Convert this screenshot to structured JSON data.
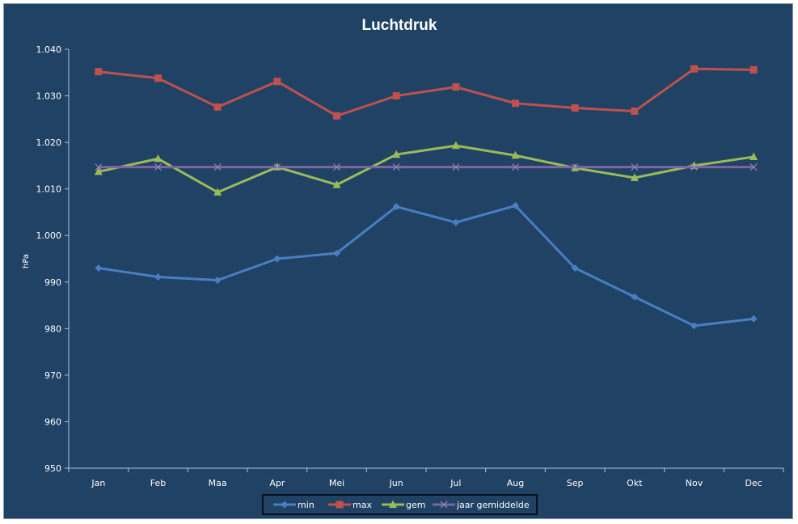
{
  "chart_data": {
    "type": "line",
    "title": "Luchtdruk",
    "ylabel": "hPa",
    "xlabel": "",
    "ylim": [
      950,
      1040
    ],
    "yticks": [
      950,
      960,
      970,
      980,
      990,
      1000,
      1010,
      1020,
      1030,
      1040
    ],
    "ytick_labels": [
      "950",
      "960",
      "970",
      "980",
      "990",
      "1.000",
      "1.010",
      "1.020",
      "1.030",
      "1.040"
    ],
    "categories": [
      "Jan",
      "Feb",
      "Maa",
      "Apr",
      "Mei",
      "Jun",
      "Jul",
      "Aug",
      "Sep",
      "Okt",
      "Nov",
      "Dec"
    ],
    "grid": false,
    "legend_position": "bottom",
    "series": [
      {
        "name": "min",
        "color": "#4a7ec2",
        "marker": "diamond",
        "values": [
          993.0,
          991.1,
          990.4,
          995.0,
          996.2,
          1006.2,
          1002.8,
          1006.4,
          993.0,
          986.8,
          980.6,
          982.1
        ]
      },
      {
        "name": "max",
        "color": "#c0504d",
        "marker": "square",
        "values": [
          1035.2,
          1033.8,
          1027.6,
          1033.1,
          1025.7,
          1030.0,
          1031.9,
          1028.4,
          1027.4,
          1026.7,
          1035.8,
          1035.6
        ]
      },
      {
        "name": "gem",
        "color": "#9bbb59",
        "marker": "triangle",
        "values": [
          1013.7,
          1016.5,
          1009.3,
          1014.7,
          1010.9,
          1017.4,
          1019.3,
          1017.2,
          1014.5,
          1012.4,
          1015.0,
          1016.9
        ]
      },
      {
        "name": "jaar gemiddelde",
        "color": "#8064a2",
        "marker": "x",
        "values": [
          1014.7,
          1014.7,
          1014.7,
          1014.7,
          1014.7,
          1014.7,
          1014.7,
          1014.7,
          1014.7,
          1014.7,
          1014.7,
          1014.7
        ]
      }
    ]
  }
}
